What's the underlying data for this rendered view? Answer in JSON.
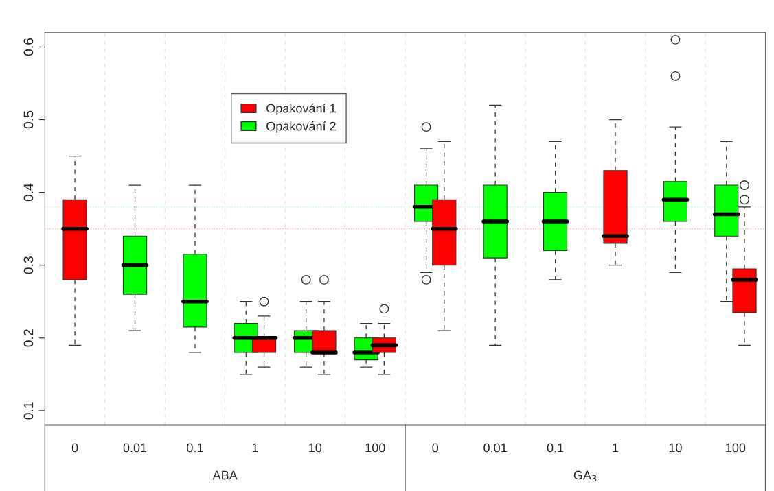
{
  "chart_data": {
    "type": "box",
    "categories": [
      "0",
      "0.01",
      "0.1",
      "1",
      "10",
      "100",
      "0",
      "0.01",
      "0.1",
      "1",
      "10",
      "100"
    ],
    "series": [
      {
        "name": "Opakování 1",
        "color": "#ff0000",
        "boxes": [
          {
            "low": 0.19,
            "q1": 0.28,
            "median": 0.35,
            "q3": 0.39,
            "high": 0.45
          },
          null,
          null,
          {
            "low": 0.16,
            "q1": 0.18,
            "median": 0.2,
            "q3": 0.2,
            "high": 0.23,
            "outliers": [
              0.25
            ]
          },
          {
            "low": 0.15,
            "q1": 0.18,
            "median": 0.18,
            "q3": 0.21,
            "high": 0.25,
            "outliers": [
              0.28
            ]
          },
          {
            "low": 0.15,
            "q1": 0.18,
            "median": 0.19,
            "q3": 0.2,
            "high": 0.22,
            "outliers": [
              0.24
            ]
          },
          {
            "low": 0.21,
            "q1": 0.3,
            "median": 0.35,
            "q3": 0.39,
            "high": 0.47
          },
          null,
          null,
          {
            "low": 0.3,
            "q1": 0.33,
            "median": 0.34,
            "q3": 0.43,
            "high": 0.5
          },
          null,
          {
            "low": 0.19,
            "q1": 0.235,
            "median": 0.28,
            "q3": 0.295,
            "high": 0.38,
            "outliers": [
              0.41,
              0.39
            ]
          }
        ]
      },
      {
        "name": "Opakování 2",
        "color": "#00ff00",
        "boxes": [
          null,
          {
            "low": 0.21,
            "q1": 0.26,
            "median": 0.3,
            "q3": 0.34,
            "high": 0.41
          },
          {
            "low": 0.18,
            "q1": 0.215,
            "median": 0.25,
            "q3": 0.315,
            "high": 0.41
          },
          {
            "low": 0.15,
            "q1": 0.18,
            "median": 0.2,
            "q3": 0.22,
            "high": 0.25
          },
          {
            "low": 0.16,
            "q1": 0.18,
            "median": 0.2,
            "q3": 0.21,
            "high": 0.25,
            "outliers": [
              0.28
            ]
          },
          {
            "low": 0.16,
            "q1": 0.17,
            "median": 0.18,
            "q3": 0.2,
            "high": 0.22
          },
          {
            "low": 0.29,
            "q1": 0.36,
            "median": 0.38,
            "q3": 0.41,
            "high": 0.46,
            "outliers": [
              0.49,
              0.28
            ]
          },
          {
            "low": 0.19,
            "q1": 0.31,
            "median": 0.36,
            "q3": 0.41,
            "high": 0.52
          },
          {
            "low": 0.28,
            "q1": 0.32,
            "median": 0.36,
            "q3": 0.4,
            "high": 0.47
          },
          null,
          {
            "low": 0.29,
            "q1": 0.36,
            "median": 0.39,
            "q3": 0.415,
            "high": 0.49,
            "outliers": [
              0.61,
              0.56
            ]
          },
          {
            "low": 0.25,
            "q1": 0.34,
            "median": 0.37,
            "q3": 0.41,
            "high": 0.47
          }
        ]
      }
    ],
    "ylim": [
      0.08,
      0.62
    ],
    "yticks": [
      0.1,
      0.2,
      0.3,
      0.4,
      0.5,
      0.6
    ],
    "ref_lines": [
      {
        "axis": "y",
        "value": 0.35,
        "color": "#ffaaaa",
        "line_style": "dotted"
      },
      {
        "axis": "y",
        "value": 0.38,
        "color": "#aaffaa",
        "line_style": "dotted"
      }
    ],
    "annotations": [
      "ABA",
      "GA$_{3}$"
    ],
    "grid": "x",
    "legend": "top left"
  }
}
